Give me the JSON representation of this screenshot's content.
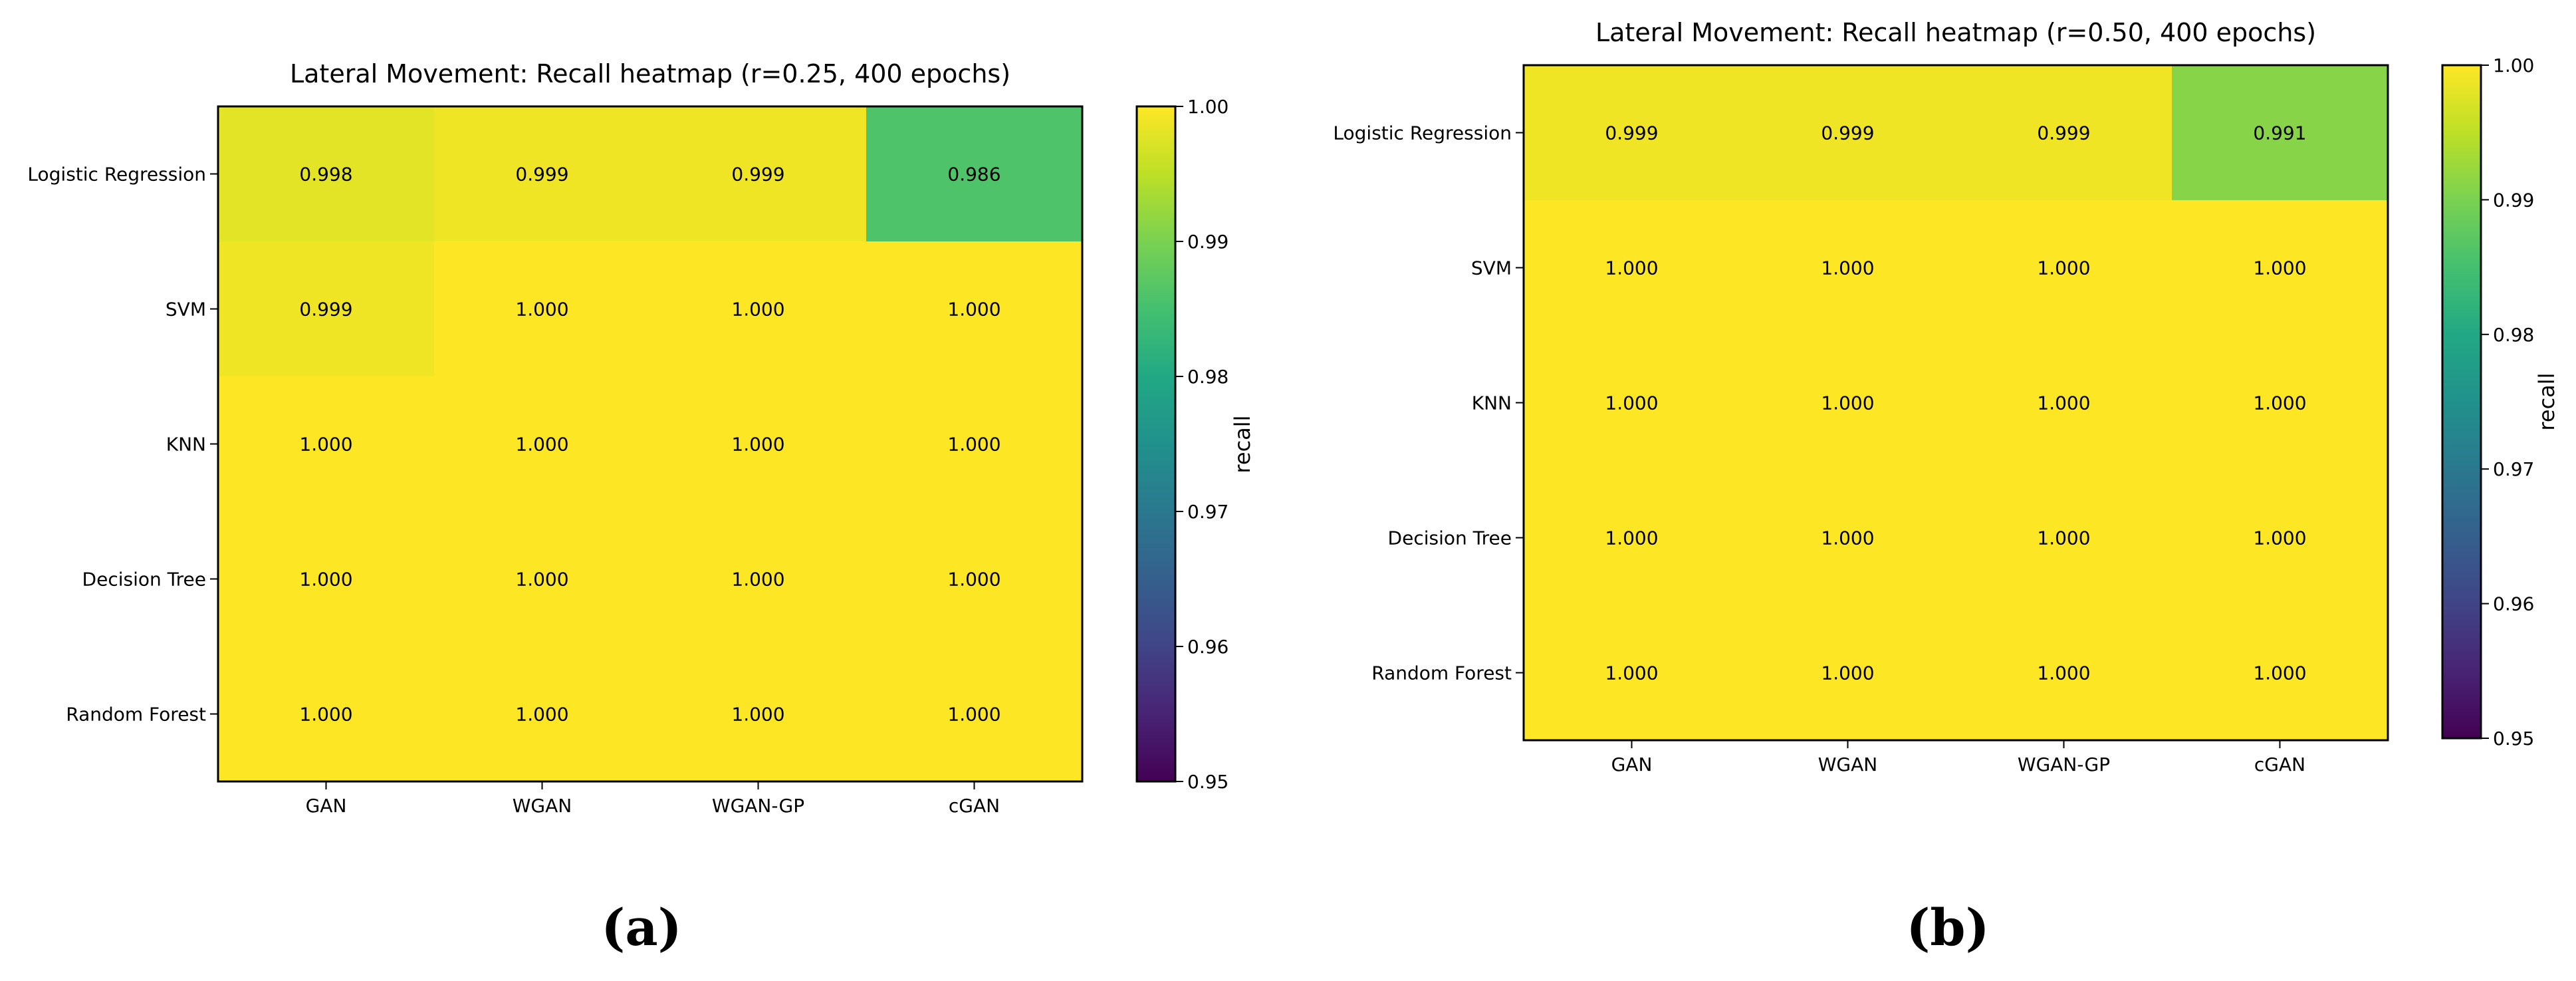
{
  "chart_data": [
    {
      "type": "heatmap",
      "panel_label": "(a)",
      "title": "Lateral Movement: Recall heatmap (r=0.25, 400 epochs)",
      "rows": [
        "Logistic Regression",
        "SVM",
        "KNN",
        "Decision Tree",
        "Random Forest"
      ],
      "columns": [
        "GAN",
        "WGAN",
        "WGAN-GP",
        "cGAN"
      ],
      "values": [
        [
          0.998,
          0.999,
          0.999,
          0.986
        ],
        [
          0.999,
          1.0,
          1.0,
          1.0
        ],
        [
          1.0,
          1.0,
          1.0,
          1.0
        ],
        [
          1.0,
          1.0,
          1.0,
          1.0
        ],
        [
          1.0,
          1.0,
          1.0,
          1.0
        ]
      ],
      "cell_labels": [
        [
          "0.998",
          "0.999",
          "0.999",
          "0.986"
        ],
        [
          "0.999",
          "1.000",
          "1.000",
          "1.000"
        ],
        [
          "1.000",
          "1.000",
          "1.000",
          "1.000"
        ],
        [
          "1.000",
          "1.000",
          "1.000",
          "1.000"
        ],
        [
          "1.000",
          "1.000",
          "1.000",
          "1.000"
        ]
      ],
      "colorbar": {
        "label": "recall",
        "range": [
          0.95,
          1.0
        ],
        "ticks": [
          "0.95",
          "0.96",
          "0.97",
          "0.98",
          "0.99",
          "1.00"
        ],
        "colormap": "viridis"
      }
    },
    {
      "type": "heatmap",
      "panel_label": "(b)",
      "title": "Lateral Movement: Recall heatmap (r=0.50, 400 epochs)",
      "rows": [
        "Logistic Regression",
        "SVM",
        "KNN",
        "Decision Tree",
        "Random Forest"
      ],
      "columns": [
        "GAN",
        "WGAN",
        "WGAN-GP",
        "cGAN"
      ],
      "values": [
        [
          0.999,
          0.999,
          0.999,
          0.991
        ],
        [
          1.0,
          1.0,
          1.0,
          1.0
        ],
        [
          1.0,
          1.0,
          1.0,
          1.0
        ],
        [
          1.0,
          1.0,
          1.0,
          1.0
        ],
        [
          1.0,
          1.0,
          1.0,
          1.0
        ]
      ],
      "cell_labels": [
        [
          "0.999",
          "0.999",
          "0.999",
          "0.991"
        ],
        [
          "1.000",
          "1.000",
          "1.000",
          "1.000"
        ],
        [
          "1.000",
          "1.000",
          "1.000",
          "1.000"
        ],
        [
          "1.000",
          "1.000",
          "1.000",
          "1.000"
        ],
        [
          "1.000",
          "1.000",
          "1.000",
          "1.000"
        ]
      ],
      "colorbar": {
        "label": "recall",
        "range": [
          0.95,
          1.0
        ],
        "ticks": [
          "0.95",
          "0.96",
          "0.97",
          "0.98",
          "0.99",
          "1.00"
        ],
        "colormap": "viridis"
      }
    }
  ]
}
